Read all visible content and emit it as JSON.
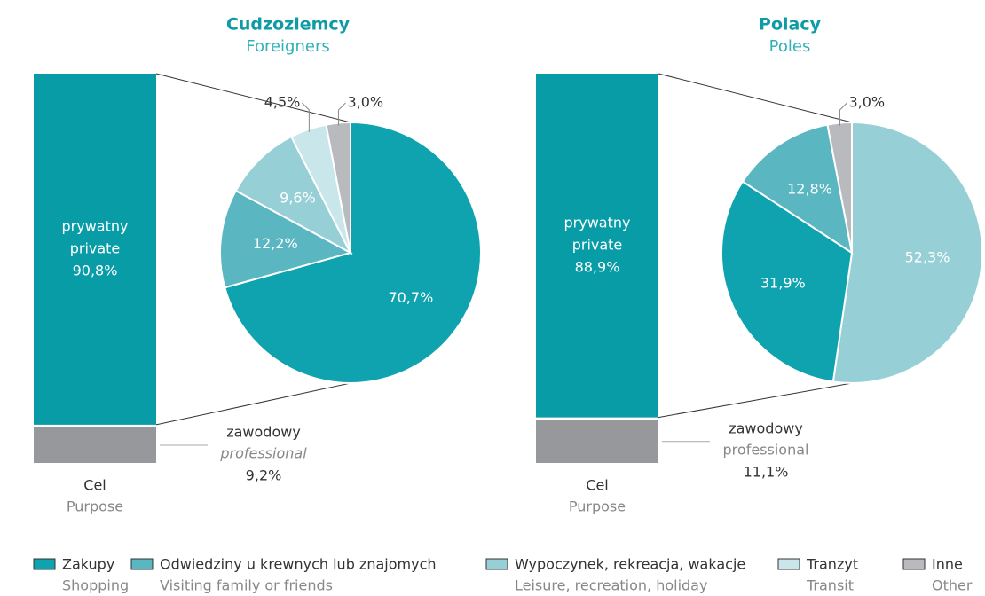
{
  "chart_data": [
    {
      "type": "bar-of-pie",
      "title": "Cudzoziemcy",
      "subtitle": "Foreigners",
      "axis_label": "Cel",
      "axis_sublabel": "Purpose",
      "bar": {
        "categories": [
          "prywatny",
          "zawodowy"
        ],
        "translations": [
          "private",
          "professional"
        ],
        "values": [
          90.8,
          9.2
        ],
        "value_labels": [
          "90,8%",
          "9,2%"
        ],
        "colors": [
          "#089ca6",
          "#97989b"
        ]
      },
      "pie": {
        "values": [
          70.7,
          12.2,
          9.6,
          4.5,
          3.0
        ],
        "value_labels": [
          "70,7%",
          "12,2%",
          "9,6%",
          "4,5%",
          "3,0%"
        ],
        "colors": [
          "#0ea3ae",
          "#5ab6c0",
          "#97cfd6",
          "#c9e6ea",
          "#b9babd"
        ]
      }
    },
    {
      "type": "bar-of-pie",
      "title": "Polacy",
      "subtitle": "Poles",
      "axis_label": "Cel",
      "axis_sublabel": "Purpose",
      "bar": {
        "categories": [
          "prywatny",
          "zawodowy"
        ],
        "translations": [
          "private",
          "professional"
        ],
        "values": [
          88.9,
          11.1
        ],
        "value_labels": [
          "88,9%",
          "11,1%"
        ],
        "colors": [
          "#089ca6",
          "#97989b"
        ]
      },
      "pie": {
        "values": [
          52.3,
          31.9,
          12.8,
          3.0
        ],
        "value_labels": [
          "52,3%",
          "31,9%",
          "12,8%",
          "3,0%"
        ],
        "colors": [
          "#97cfd6",
          "#0ea3ae",
          "#5ab6c0",
          "#b9babd"
        ]
      }
    }
  ],
  "legend": [
    {
      "name": "Zakupy",
      "translation": "Shopping",
      "color": "#0ea3ae"
    },
    {
      "name": "Odwiedziny u krewnych lub znajomych",
      "translation": "Visiting family or friends",
      "color": "#5ab6c0"
    },
    {
      "name": "Wypoczynek, rekreacja, wakacje",
      "translation": "Leisure, recreation, holiday",
      "color": "#97cfd6"
    },
    {
      "name": "Tranzyt",
      "translation": "Transit",
      "color": "#c9e6ea"
    },
    {
      "name": "Inne",
      "translation": "Other",
      "color": "#b9babd"
    }
  ]
}
